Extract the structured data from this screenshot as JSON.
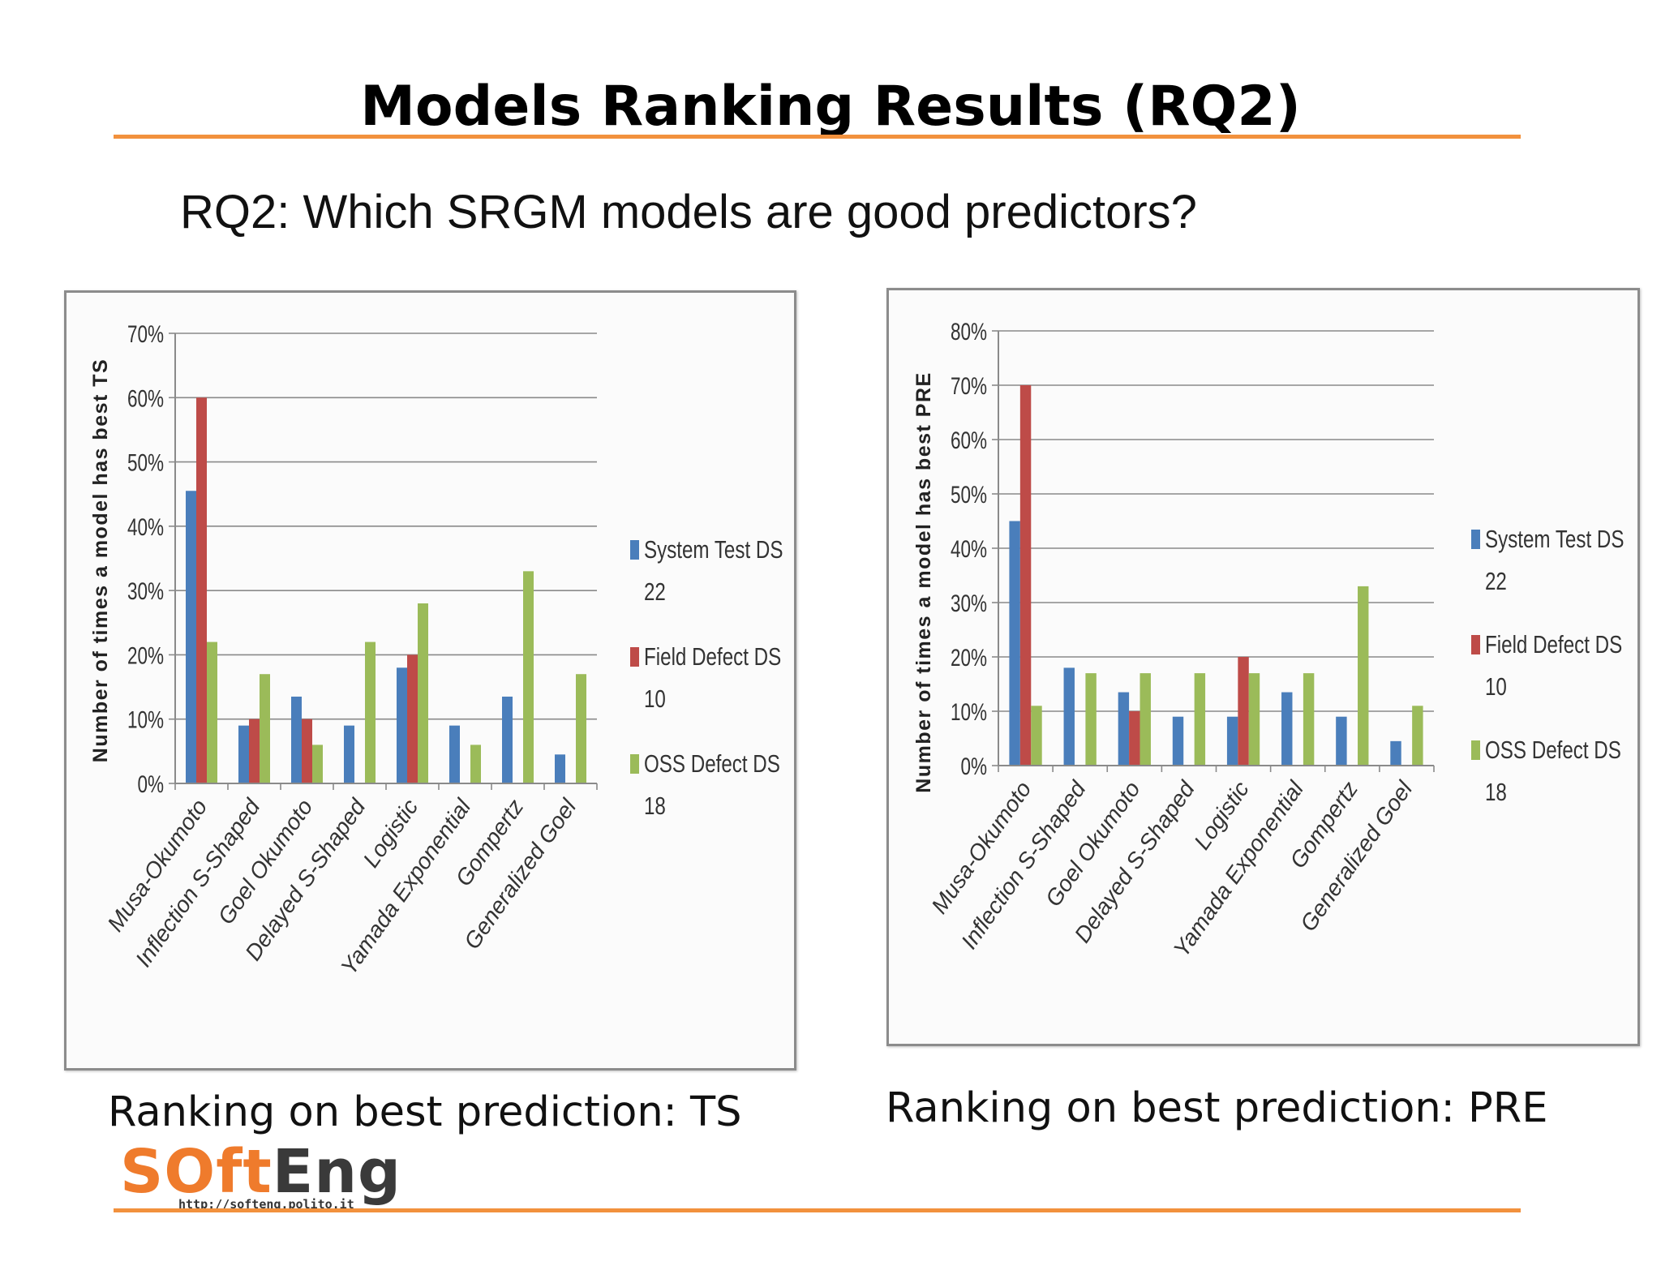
{
  "slide": {
    "title": "Models Ranking Results (RQ2)",
    "question": "RQ2: Which SRGM models are good predictors?",
    "caption_left": "Ranking on best prediction: TS",
    "caption_right": "Ranking on best prediction:  PRE",
    "accent_color": "#f2913d",
    "logo": {
      "word_prefix": "SOft",
      "word_suffix": "Eng",
      "url": "http://softeng.polito.it",
      "prefix_color": "#ef7b2c",
      "suffix_color": "#3a3a3a"
    }
  },
  "chart_data": [
    {
      "type": "bar",
      "ylabel": "Number of times a model has best TS",
      "ylim": [
        0,
        0.7
      ],
      "yticks": [
        0,
        0.1,
        0.2,
        0.3,
        0.4,
        0.5,
        0.6,
        0.7
      ],
      "ytick_labels": [
        "0%",
        "10%",
        "20%",
        "30%",
        "40%",
        "50%",
        "60%",
        "70%"
      ],
      "grid": true,
      "legend_position": "right",
      "categories": [
        "Musa-Okumoto",
        "Inflection S-Shaped",
        "Goel Okumoto",
        "Delayed S-Shaped",
        "Logistic",
        "Yamada Exponential",
        "Gompertz",
        "Generalized Goel"
      ],
      "series": [
        {
          "name": "System Test DS",
          "count": "22",
          "color": "#4a7ebb",
          "values": [
            0.455,
            0.09,
            0.135,
            0.09,
            0.18,
            0.09,
            0.135,
            0.045
          ]
        },
        {
          "name": "Field  Defect DS",
          "count": "10",
          "color": "#be4b48",
          "values": [
            0.6,
            0.1,
            0.1,
            0.0,
            0.2,
            0.0,
            0.0,
            0.0
          ]
        },
        {
          "name": "OSS Defect DS",
          "count": "18",
          "color": "#9bbb59",
          "values": [
            0.22,
            0.17,
            0.06,
            0.22,
            0.28,
            0.06,
            0.33,
            0.17
          ]
        }
      ]
    },
    {
      "type": "bar",
      "ylabel": "Number of times a model has best PRE",
      "ylim": [
        0,
        0.8
      ],
      "yticks": [
        0,
        0.1,
        0.2,
        0.3,
        0.4,
        0.5,
        0.6,
        0.7,
        0.8
      ],
      "ytick_labels": [
        "0%",
        "10%",
        "20%",
        "30%",
        "40%",
        "50%",
        "60%",
        "70%",
        "80%"
      ],
      "grid": true,
      "legend_position": "right",
      "categories": [
        "Musa-Okumoto",
        "Inflection S-Shaped",
        "Goel Okumoto",
        "Delayed S-Shaped",
        "Logistic",
        "Yamada Exponential",
        "Gompertz",
        "Generalized Goel"
      ],
      "series": [
        {
          "name": "System Test DS",
          "count": "22",
          "color": "#4a7ebb",
          "values": [
            0.45,
            0.18,
            0.135,
            0.09,
            0.09,
            0.135,
            0.09,
            0.045
          ]
        },
        {
          "name": "Field  Defect DS",
          "count": "10",
          "color": "#be4b48",
          "values": [
            0.7,
            0.0,
            0.1,
            0.0,
            0.2,
            0.0,
            0.0,
            0.0
          ]
        },
        {
          "name": "OSS Defect DS",
          "count": "18",
          "color": "#9bbb59",
          "values": [
            0.11,
            0.17,
            0.17,
            0.17,
            0.17,
            0.17,
            0.33,
            0.11
          ]
        }
      ]
    }
  ]
}
